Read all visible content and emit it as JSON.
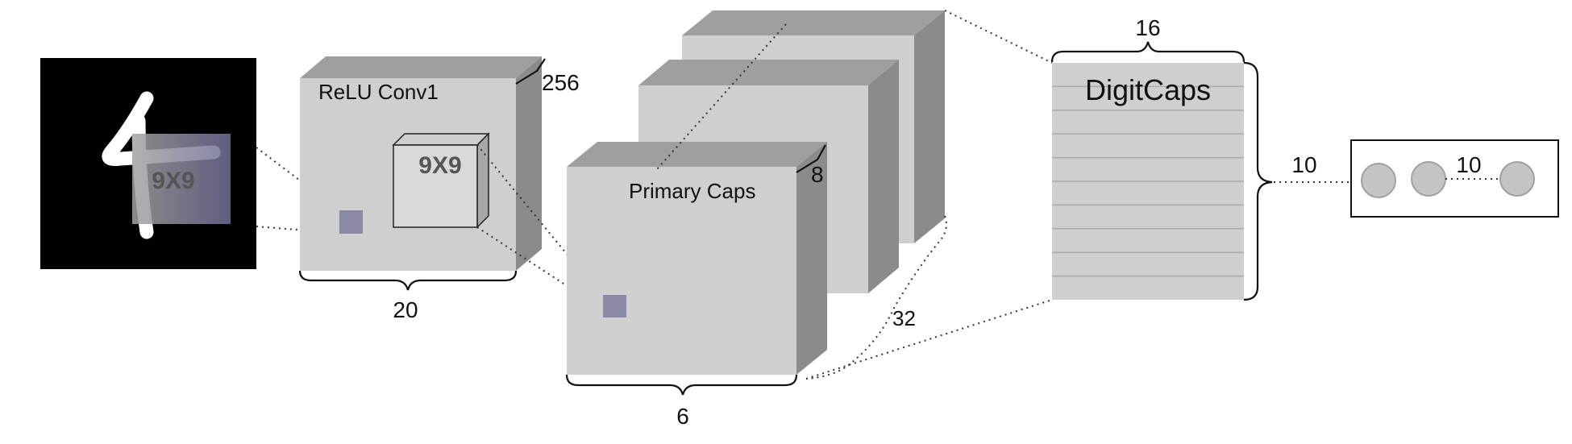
{
  "input": {
    "kernel_label": "9X9",
    "digit_glyph": "4"
  },
  "relu_conv1": {
    "title": "ReLU Conv1",
    "depth_label": "256",
    "width_label": "20",
    "kernel_label": "9X9"
  },
  "primary_caps": {
    "title": "Primary Caps",
    "depth_label": "8",
    "count_label": "32",
    "width_label": "6"
  },
  "digit_caps": {
    "title": "DigitCaps",
    "top_label": "16",
    "side_label": "10",
    "row_count": 10
  },
  "output": {
    "label": "10",
    "node_count_shown": 3
  },
  "colors": {
    "cube_front": "#cfcfcf",
    "cube_top": "#9f9f9f",
    "cube_side": "#8b8b8b",
    "kernel_fill": "#8a89a6",
    "input_background": "#000000"
  }
}
